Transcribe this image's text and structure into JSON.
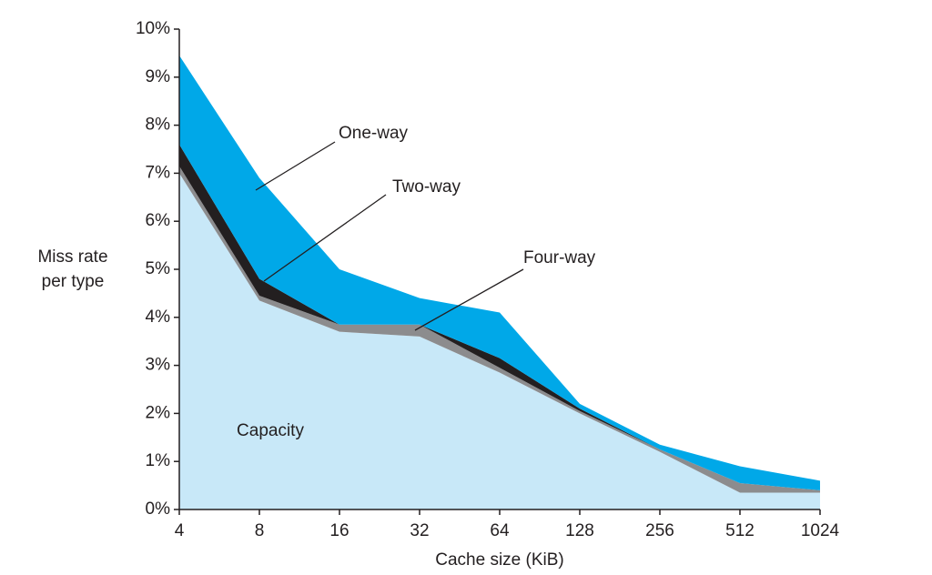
{
  "chart_data": {
    "type": "stacked_area",
    "xlabel": "Cache size (KiB)",
    "ylabel": [
      "Miss rate",
      "per type"
    ],
    "categories": [
      "4",
      "8",
      "16",
      "32",
      "64",
      "128",
      "256",
      "512",
      "1024"
    ],
    "series": [
      {
        "name": "Capacity",
        "color": "#c8e8f8",
        "values": [
          7.0,
          4.35,
          3.7,
          3.6,
          2.85,
          2.0,
          1.2,
          0.35,
          0.35
        ]
      },
      {
        "name": "Four-way",
        "color": "#8c8c8e",
        "values": [
          0.15,
          0.1,
          0.15,
          0.25,
          0.1,
          0.05,
          0.05,
          0.2,
          0.05
        ]
      },
      {
        "name": "Two-way",
        "color": "#231f20",
        "values": [
          0.45,
          0.35,
          0,
          0,
          0.2,
          0.05,
          0,
          0,
          0
        ]
      },
      {
        "name": "One-way",
        "color": "#00a8e8",
        "values": [
          1.85,
          2.1,
          1.15,
          0.55,
          0.95,
          0.1,
          0.1,
          0.35,
          0.2
        ]
      }
    ],
    "ylim": [
      0,
      10
    ],
    "yticks": [
      {
        "value": 0,
        "label": "0%"
      },
      {
        "value": 1,
        "label": "1%"
      },
      {
        "value": 2,
        "label": "2%"
      },
      {
        "value": 3,
        "label": "3%"
      },
      {
        "value": 4,
        "label": "4%"
      },
      {
        "value": 5,
        "label": "5%"
      },
      {
        "value": 6,
        "label": "6%"
      },
      {
        "value": 7,
        "label": "7%"
      },
      {
        "value": 8,
        "label": "8%"
      },
      {
        "value": 9,
        "label": "9%"
      },
      {
        "value": 10,
        "label": "10%"
      }
    ],
    "grid": false
  }
}
